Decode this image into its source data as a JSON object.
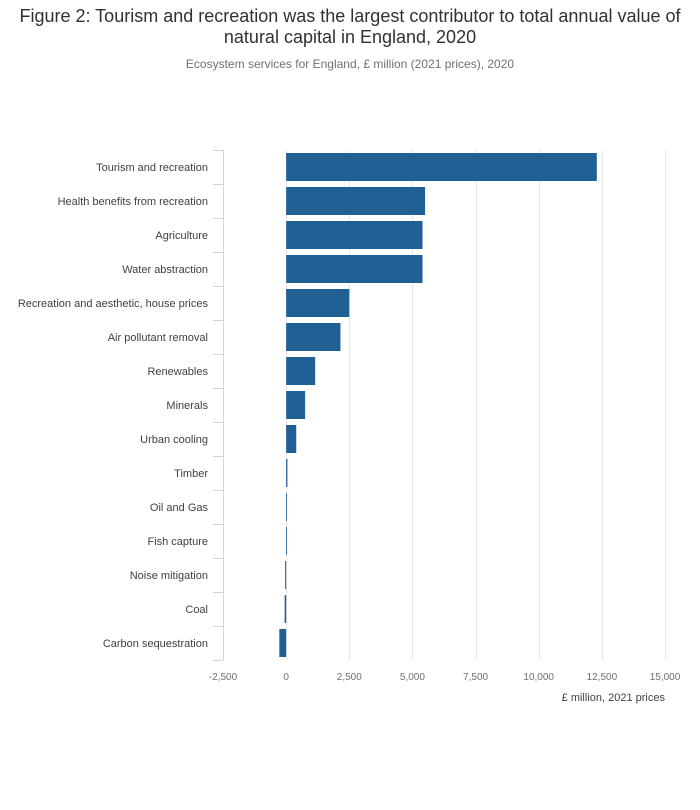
{
  "title": "Figure 2: Tourism and recreation was the largest contributor to total annual value of natural capital in England, 2020",
  "subtitle": "Ecosystem services for England, £ million (2021 prices), 2020",
  "colors": {
    "bar": "#206095",
    "grid": "#e6e6e6",
    "axis": "#ccd6eb"
  },
  "chart_data": {
    "type": "bar",
    "orientation": "horizontal",
    "categories": [
      "Tourism and recreation",
      "Health benefits from recreation",
      "Agriculture",
      "Water abstraction",
      "Recreation and aesthetic, house prices",
      "Air pollutant removal",
      "Renewables",
      "Minerals",
      "Urban cooling",
      "Timber",
      "Oil and Gas",
      "Fish capture",
      "Noise mitigation",
      "Coal",
      "Carbon sequestration"
    ],
    "values": [
      12300,
      5500,
      5400,
      5400,
      2500,
      2150,
      1150,
      750,
      400,
      50,
      30,
      10,
      -40,
      -60,
      -270
    ],
    "xlabel": "£ million, 2021 prices",
    "xlim": [
      -2500,
      15000
    ],
    "ticks": [
      -2500,
      0,
      2500,
      5000,
      7500,
      10000,
      12500,
      15000
    ],
    "tick_labels": [
      "-2,500",
      "0",
      "2,500",
      "5,000",
      "7,500",
      "10,000",
      "12,500",
      "15,000"
    ],
    "grid": true
  }
}
